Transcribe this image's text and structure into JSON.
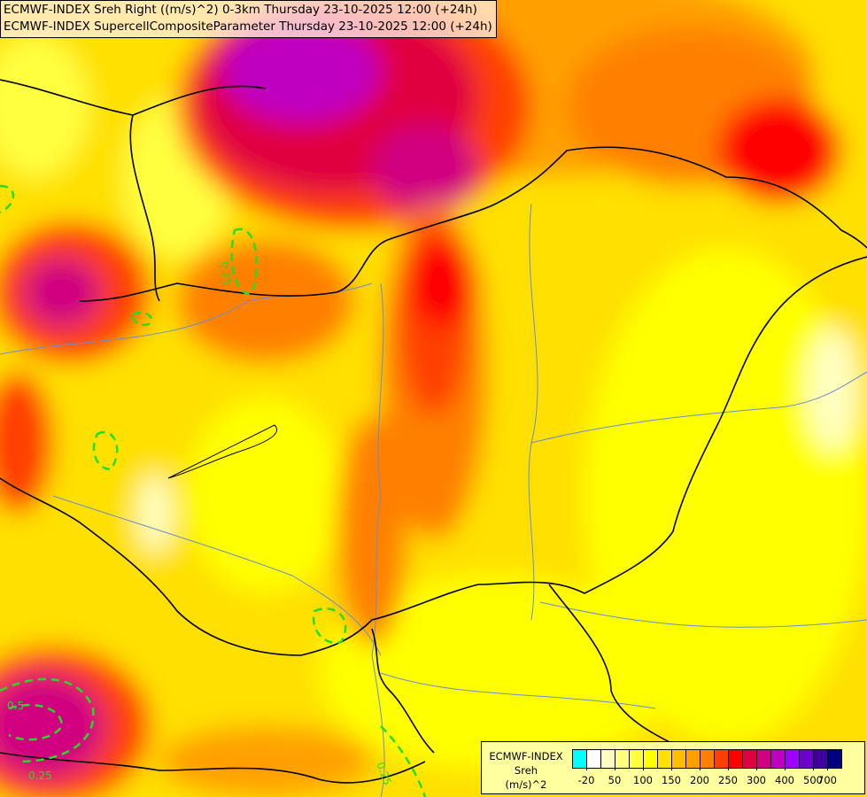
{
  "title_lines": [
    "ECMWF-INDEX Sreh Right ((m/s)^2) 0-3km Thursday 23-10-2025 12:00 (+24h)",
    "ECMWF-INDEX SupercellCompositeParameter Thursday 23-10-2025 12:00 (+24h)"
  ],
  "legend": {
    "title": [
      "ECMWF-INDEX",
      "Sreh",
      "(m/s)^2"
    ],
    "colors": [
      "#00ffff",
      "#ffffff",
      "#ffffc0",
      "#ffff80",
      "#ffff40",
      "#ffff00",
      "#ffe000",
      "#ffc000",
      "#ffa000",
      "#ff8000",
      "#ff4000",
      "#ff0000",
      "#e00040",
      "#d00080",
      "#c000c0",
      "#a000ff",
      "#7000d0",
      "#4000a0",
      "#000080"
    ],
    "labels": [
      "-20",
      "50",
      "100",
      "150",
      "200",
      "250",
      "300",
      "400",
      "500",
      "700"
    ]
  },
  "contour_labels": [
    "0.25",
    "0.5",
    "0.25",
    "0.25"
  ],
  "colors": {
    "scp_contour": "#22dd22",
    "border": "#000000",
    "river": "#6a8cd8"
  }
}
